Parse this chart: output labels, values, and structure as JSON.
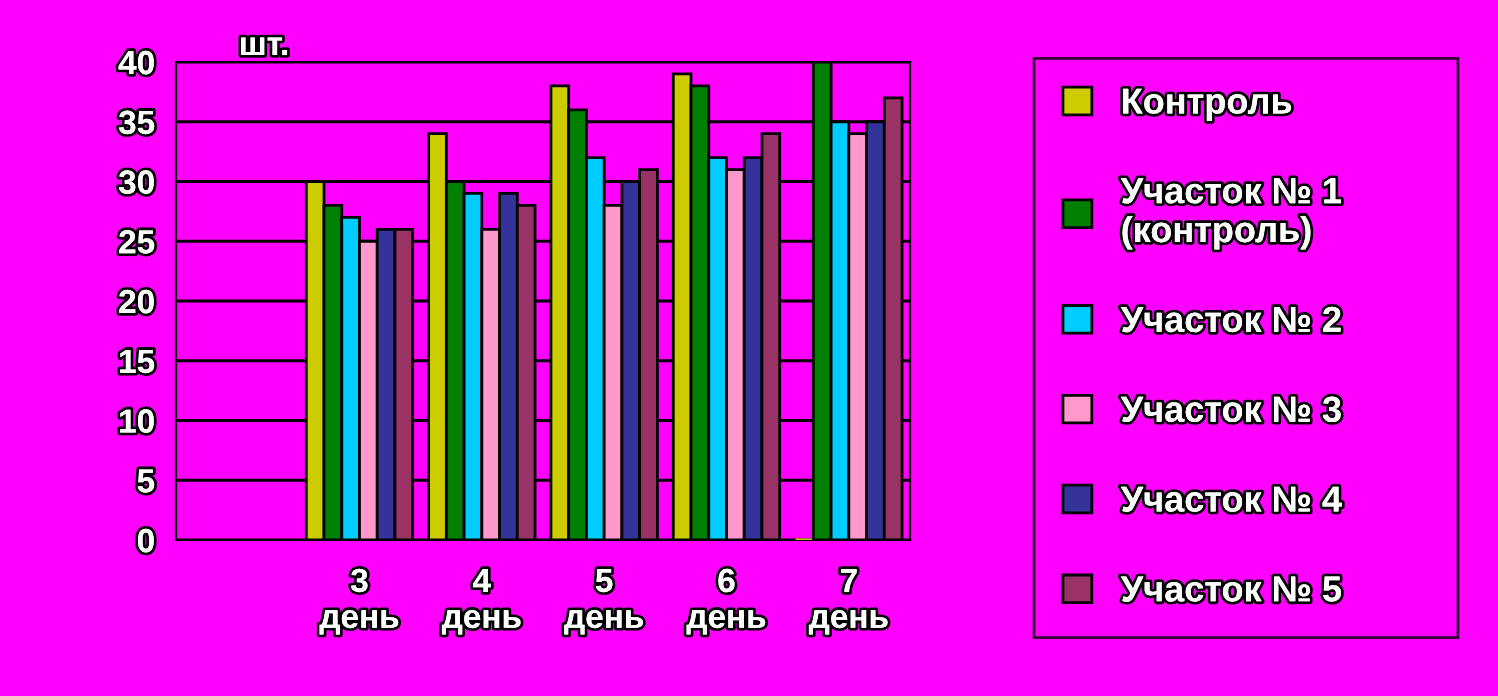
{
  "chart_data": {
    "type": "bar",
    "ylabel": "шт.",
    "categories": [
      null,
      "3\nдень",
      "4\nдень",
      "5\nдень",
      "6\nдень",
      "7\nдень"
    ],
    "series": [
      {
        "name": "Контроль",
        "color": "#cccc00",
        "values": [
          null,
          30,
          34,
          38,
          39,
          0
        ]
      },
      {
        "name": "Участок № 1\n(контроль)",
        "color": "#008000",
        "values": [
          null,
          28,
          30,
          36,
          38,
          40
        ]
      },
      {
        "name": "Участок № 2",
        "color": "#00ccff",
        "values": [
          null,
          27,
          29,
          32,
          32,
          35
        ]
      },
      {
        "name": "Участок № 3",
        "color": "#ff99cc",
        "values": [
          null,
          25,
          26,
          28,
          31,
          34
        ]
      },
      {
        "name": "Участок № 4",
        "color": "#333399",
        "values": [
          null,
          26,
          29,
          30,
          32,
          35
        ]
      },
      {
        "name": "Участок № 5",
        "color": "#993366",
        "values": [
          null,
          26,
          28,
          31,
          34,
          37
        ]
      }
    ],
    "ylim": [
      0,
      40
    ],
    "yticks": [
      0,
      5,
      10,
      15,
      20,
      25,
      30,
      35,
      40
    ],
    "grid": "y",
    "legend": "right"
  }
}
